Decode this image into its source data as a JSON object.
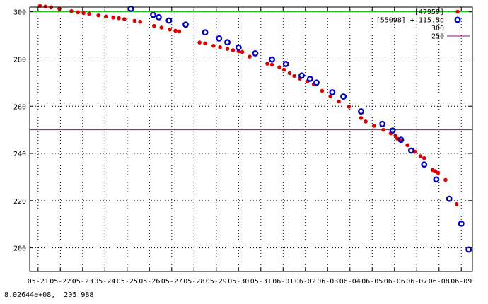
{
  "status_readout": "8.02644e+08,  205.988",
  "colors": {
    "series_red": "#e00000",
    "series_blue": "#0000c0",
    "line_300": "#00c000",
    "line_250": "#a000a0",
    "grid": "#000000",
    "frame": "#000000"
  },
  "chart_data": {
    "type": "scatter",
    "title": "",
    "xlabel": "",
    "ylabel": "",
    "x_tick_labels": [
      "05-21",
      "05-22",
      "05-23",
      "05-24",
      "05-25",
      "05-26",
      "05-27",
      "05-28",
      "05-29",
      "05-30",
      "05-31",
      "06-01",
      "06-02",
      "06-03",
      "06-04",
      "06-05",
      "06-06",
      "06-07",
      "06-08",
      "06-09"
    ],
    "xlim": [
      "05-20 15:00",
      "06-09 12:00"
    ],
    "ylim": [
      190,
      302
    ],
    "y_ticks": [
      200,
      220,
      240,
      260,
      280,
      300
    ],
    "grid": true,
    "legend_position": "top-right",
    "series": [
      {
        "name": "[47959]",
        "marker": "filled-dot",
        "color": "#e00000",
        "points": [
          {
            "x": "05-21 02:00",
            "y": 302.5
          },
          {
            "x": "05-21 08:00",
            "y": 302.2
          },
          {
            "x": "05-21 14:00",
            "y": 301.9
          },
          {
            "x": "05-21 23:00",
            "y": 301.3
          },
          {
            "x": "05-22 12:00",
            "y": 300.3
          },
          {
            "x": "05-22 19:00",
            "y": 299.8
          },
          {
            "x": "05-23 01:00",
            "y": 299.5
          },
          {
            "x": "05-23 07:00",
            "y": 299.2
          },
          {
            "x": "05-23 17:00",
            "y": 298.5
          },
          {
            "x": "05-24 01:00",
            "y": 298.0
          },
          {
            "x": "05-24 09:00",
            "y": 297.6
          },
          {
            "x": "05-24 15:00",
            "y": 297.3
          },
          {
            "x": "05-24 21:00",
            "y": 296.9
          },
          {
            "x": "05-25 08:00",
            "y": 296.2
          },
          {
            "x": "05-25 14:00",
            "y": 295.8
          },
          {
            "x": "05-26 05:00",
            "y": 294.0
          },
          {
            "x": "05-26 13:00",
            "y": 293.3
          },
          {
            "x": "05-26 22:00",
            "y": 292.5
          },
          {
            "x": "05-27 04:00",
            "y": 292.0
          },
          {
            "x": "05-27 08:00",
            "y": 291.7
          },
          {
            "x": "05-28 06:00",
            "y": 287.0
          },
          {
            "x": "05-28 12:00",
            "y": 286.6
          },
          {
            "x": "05-28 21:00",
            "y": 285.6
          },
          {
            "x": "05-29 04:00",
            "y": 285.0
          },
          {
            "x": "05-29 12:00",
            "y": 284.3
          },
          {
            "x": "05-29 18:00",
            "y": 283.7
          },
          {
            "x": "05-30 00:00",
            "y": 283.3
          },
          {
            "x": "05-30 04:00",
            "y": 283.0
          },
          {
            "x": "05-30 12:00",
            "y": 281.0
          },
          {
            "x": "05-31 07:00",
            "y": 278.0
          },
          {
            "x": "05-31 12:00",
            "y": 277.6
          },
          {
            "x": "05-31 20:00",
            "y": 276.5
          },
          {
            "x": "06-01 01:00",
            "y": 275.5
          },
          {
            "x": "06-01 07:00",
            "y": 274.0
          },
          {
            "x": "06-01 12:00",
            "y": 272.8
          },
          {
            "x": "06-01 18:00",
            "y": 271.7
          },
          {
            "x": "06-02 02:00",
            "y": 270.5
          },
          {
            "x": "06-02 09:00",
            "y": 269.3
          },
          {
            "x": "06-02 18:00",
            "y": 266.5
          },
          {
            "x": "06-03 03:00",
            "y": 264.2
          },
          {
            "x": "06-03 12:00",
            "y": 262.0
          },
          {
            "x": "06-03 23:00",
            "y": 259.8
          },
          {
            "x": "06-04 12:00",
            "y": 255.0
          },
          {
            "x": "06-04 17:00",
            "y": 253.5
          },
          {
            "x": "06-05 02:00",
            "y": 251.7
          },
          {
            "x": "06-05 12:00",
            "y": 250.0
          },
          {
            "x": "06-05 20:00",
            "y": 248.5
          },
          {
            "x": "06-06 01:00",
            "y": 247.5
          },
          {
            "x": "06-06 03:00",
            "y": 246.3
          },
          {
            "x": "06-06 06:00",
            "y": 245.5
          },
          {
            "x": "06-06 14:00",
            "y": 243.5
          },
          {
            "x": "06-06 22:00",
            "y": 240.8
          },
          {
            "x": "06-07 04:00",
            "y": 238.8
          },
          {
            "x": "06-07 08:00",
            "y": 238.0
          },
          {
            "x": "06-07 17:00",
            "y": 233.0
          },
          {
            "x": "06-07 20:00",
            "y": 232.5
          },
          {
            "x": "06-07 23:00",
            "y": 231.8
          },
          {
            "x": "06-08 07:00",
            "y": 228.8
          },
          {
            "x": "06-08 19:00",
            "y": 218.5
          }
        ]
      },
      {
        "name": "[55098] + 115.5d",
        "marker": "open-circle",
        "color": "#0000c0",
        "points": [
          {
            "x": "05-25 04:00",
            "y": 301.3
          },
          {
            "x": "05-26 04:00",
            "y": 298.7
          },
          {
            "x": "05-26 10:00",
            "y": 297.7
          },
          {
            "x": "05-26 21:00",
            "y": 296.3
          },
          {
            "x": "05-27 15:00",
            "y": 294.6
          },
          {
            "x": "05-28 12:00",
            "y": 291.3
          },
          {
            "x": "05-29 03:00",
            "y": 288.7
          },
          {
            "x": "05-29 12:00",
            "y": 287.1
          },
          {
            "x": "05-30 00:00",
            "y": 284.9
          },
          {
            "x": "05-30 18:00",
            "y": 282.4
          },
          {
            "x": "05-31 12:00",
            "y": 279.8
          },
          {
            "x": "06-01 03:00",
            "y": 277.9
          },
          {
            "x": "06-01 20:00",
            "y": 273.0
          },
          {
            "x": "06-02 05:00",
            "y": 271.6
          },
          {
            "x": "06-02 12:00",
            "y": 270.0
          },
          {
            "x": "06-03 05:00",
            "y": 265.9
          },
          {
            "x": "06-03 17:00",
            "y": 264.1
          },
          {
            "x": "06-04 12:00",
            "y": 257.8
          },
          {
            "x": "06-05 11:00",
            "y": 252.5
          },
          {
            "x": "06-05 22:00",
            "y": 249.7
          },
          {
            "x": "06-06 07:00",
            "y": 245.8
          },
          {
            "x": "06-06 18:00",
            "y": 241.2
          },
          {
            "x": "06-07 08:00",
            "y": 235.3
          },
          {
            "x": "06-07 21:00",
            "y": 229.0
          },
          {
            "x": "06-08 11:00",
            "y": 220.8
          },
          {
            "x": "06-09 00:00",
            "y": 210.3
          },
          {
            "x": "06-09 08:00",
            "y": 199.3
          }
        ]
      },
      {
        "name": "300",
        "type": "line",
        "color": "#00c000",
        "y_constant": 300
      },
      {
        "name": "250",
        "type": "line",
        "color": "#a000a0",
        "y_constant": 250
      }
    ]
  }
}
